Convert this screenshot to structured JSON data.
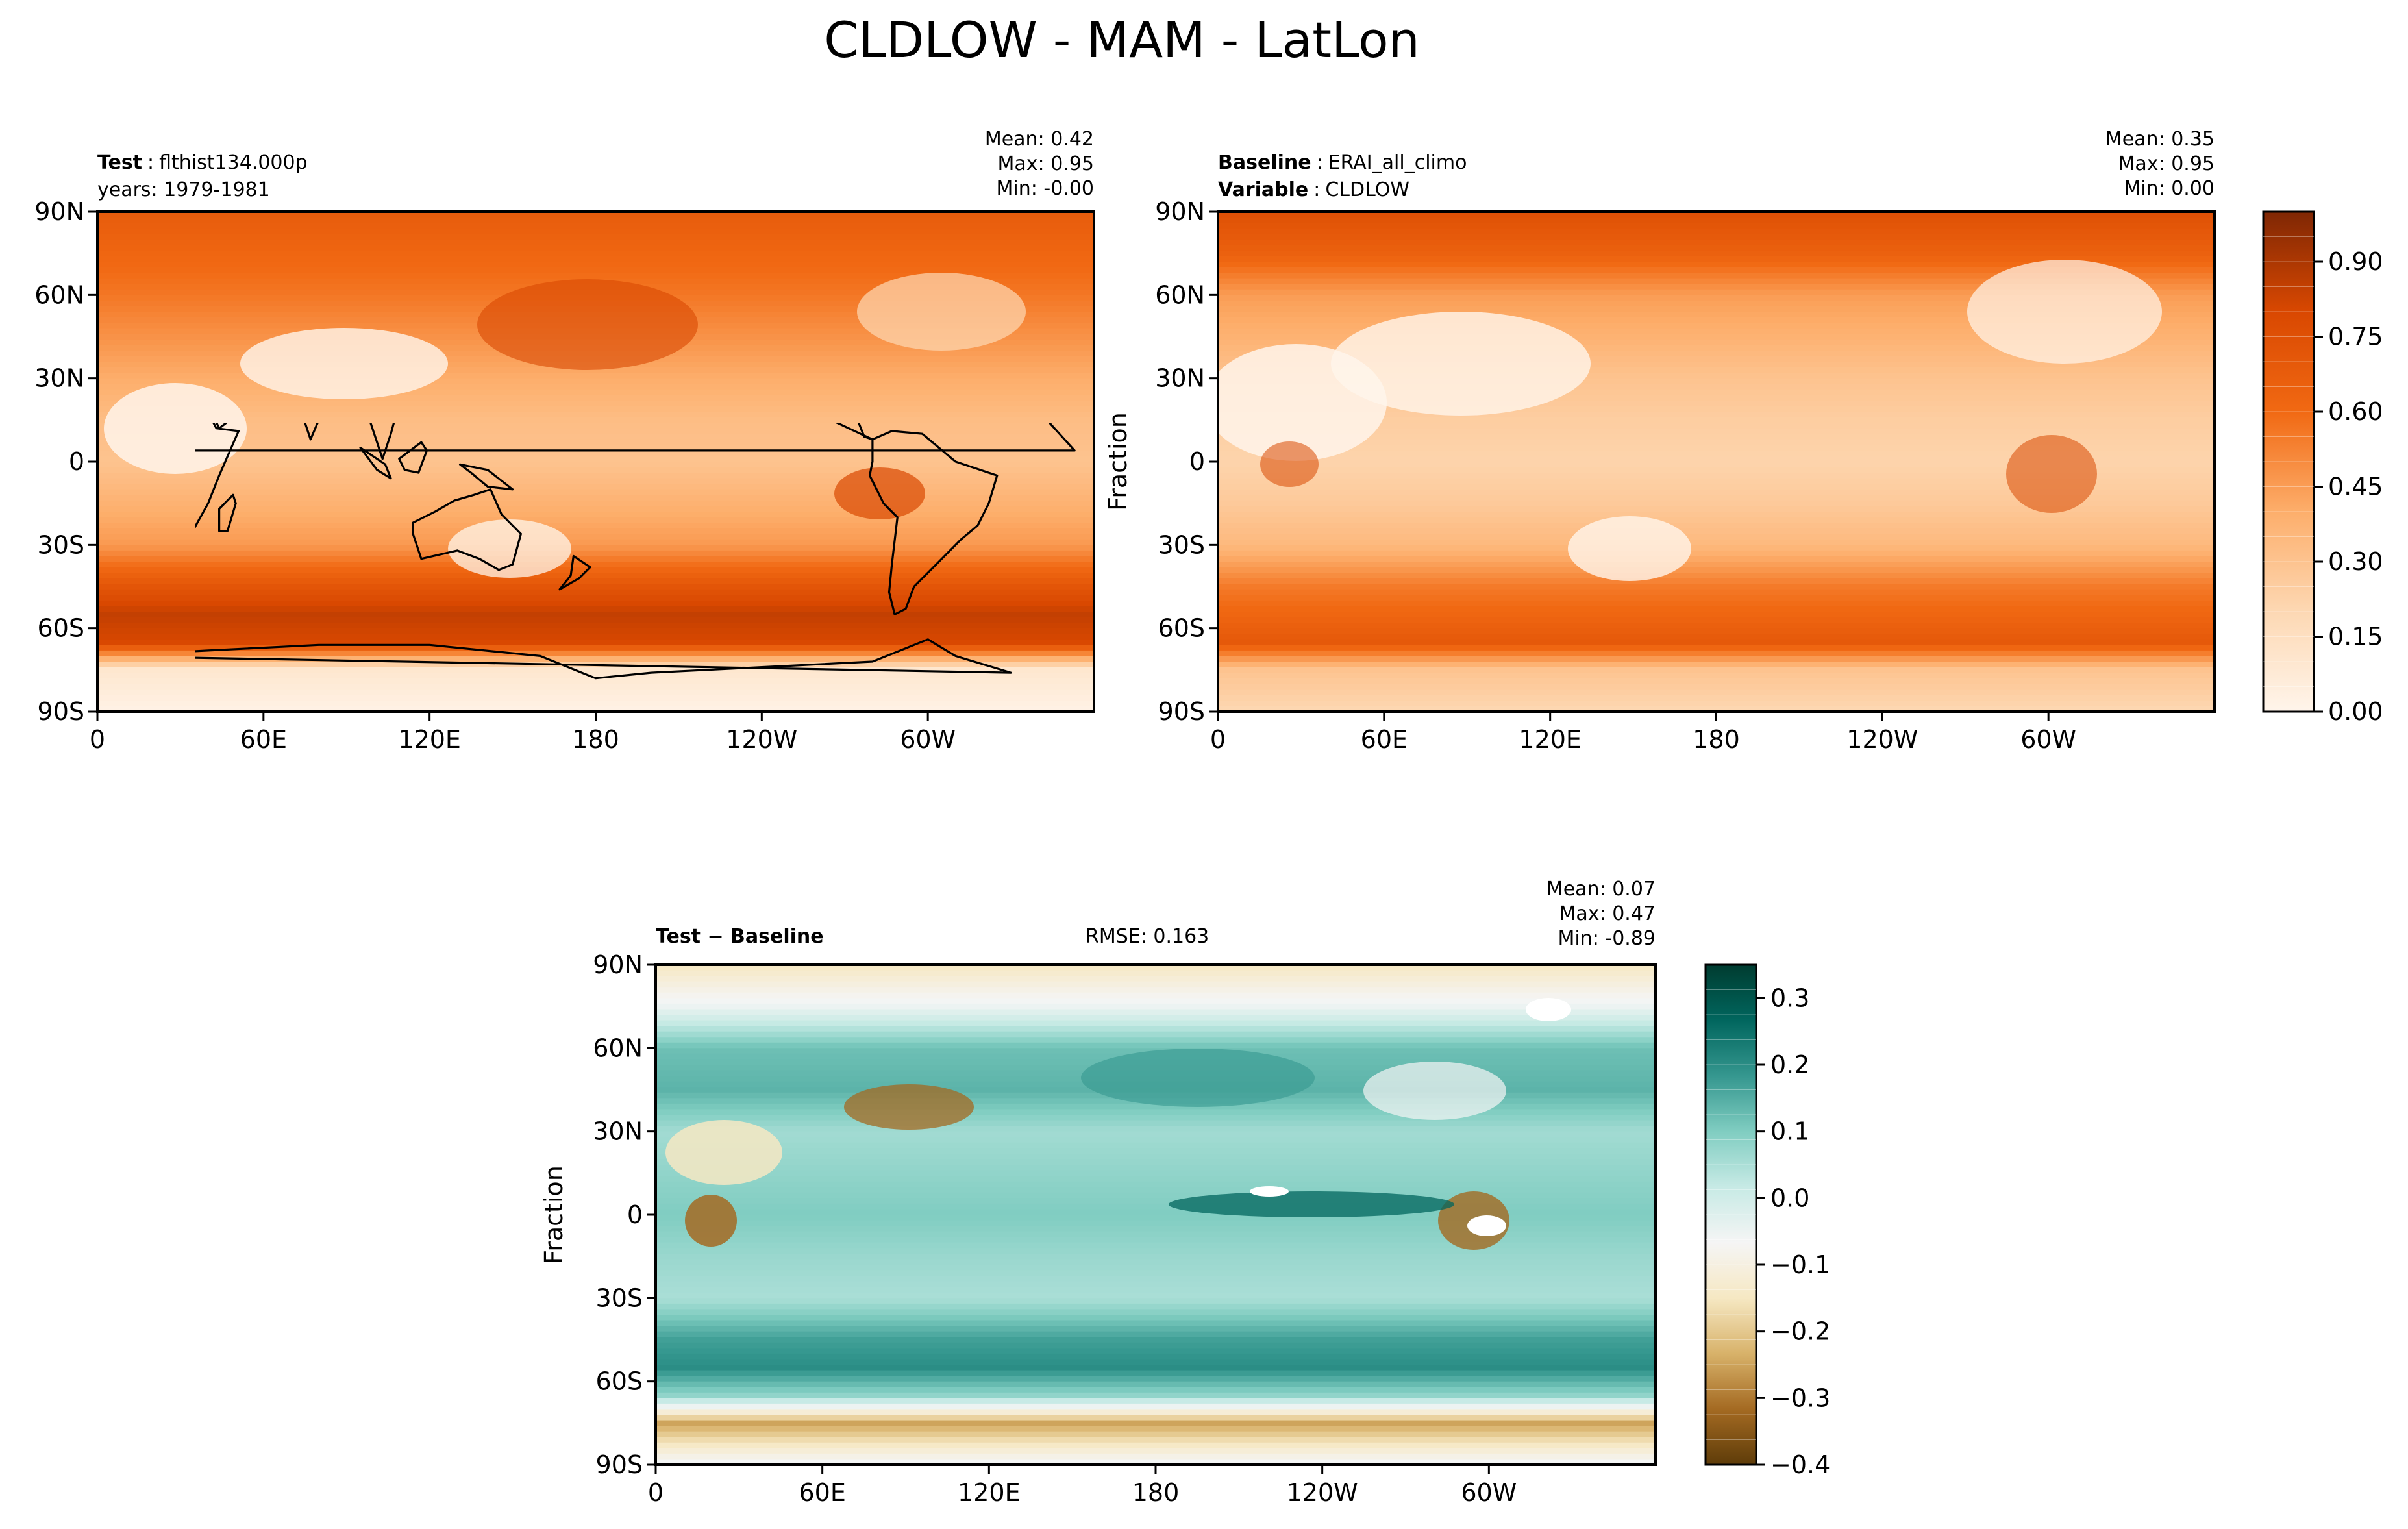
{
  "figure_title": "CLDLOW - MAM - LatLon",
  "colors": {
    "cldlow_ramp": [
      "#fff5eb",
      "#fdd8b3",
      "#fdae6b",
      "#f16913",
      "#d94801",
      "#7f2704"
    ],
    "diff_ramp": [
      "#5e3c09",
      "#a46a22",
      "#d8b26a",
      "#f6e8c3",
      "#f5f5f5",
      "#c7eae5",
      "#80cdc1",
      "#35978f",
      "#01665e",
      "#003c30"
    ],
    "axis": "#000000",
    "coast": "#000000"
  },
  "chart_data": [
    {
      "type": "heatmap",
      "panel": "test",
      "header_label": "Test",
      "header_value": "flthist134.000p",
      "subheader": "years: 1979-1981",
      "stats": {
        "mean": "Mean:  0.42",
        "max": "Max:  0.95",
        "min": "Min: -0.00"
      },
      "ylabel": "",
      "xticks": [
        "0",
        "60E",
        "120E",
        "180",
        "120W",
        "60W"
      ],
      "yticks": [
        "90N",
        "60N",
        "30N",
        "0",
        "30S",
        "60S",
        "90S"
      ],
      "xlim": [
        0,
        360
      ],
      "ylim": [
        -90,
        90
      ],
      "value_range": [
        0,
        1
      ],
      "zonal_profile": [
        {
          "lat": 90,
          "v": 0.68
        },
        {
          "lat": 75,
          "v": 0.62
        },
        {
          "lat": 60,
          "v": 0.56
        },
        {
          "lat": 45,
          "v": 0.48
        },
        {
          "lat": 30,
          "v": 0.4
        },
        {
          "lat": 15,
          "v": 0.33
        },
        {
          "lat": 0,
          "v": 0.3
        },
        {
          "lat": -15,
          "v": 0.38
        },
        {
          "lat": -30,
          "v": 0.46
        },
        {
          "lat": -45,
          "v": 0.72
        },
        {
          "lat": -55,
          "v": 0.85
        },
        {
          "lat": -65,
          "v": 0.8
        },
        {
          "lat": -75,
          "v": 0.1
        },
        {
          "lat": -90,
          "v": 0.02
        }
      ]
    },
    {
      "type": "heatmap",
      "panel": "baseline",
      "header_label": "Baseline",
      "header_value": "ERAI_all_climo",
      "subheader_label": "Variable",
      "subheader_value": "CLDLOW",
      "stats": {
        "mean": "Mean:  0.35",
        "max": "Max:  0.95",
        "min": "Min:  0.00"
      },
      "ylabel": "Fraction",
      "xticks": [
        "0",
        "60E",
        "120E",
        "180",
        "120W",
        "60W"
      ],
      "yticks": [
        "90N",
        "60N",
        "30N",
        "0",
        "30S",
        "60S",
        "90S"
      ],
      "xlim": [
        0,
        360
      ],
      "ylim": [
        -90,
        90
      ],
      "value_range": [
        0,
        1
      ],
      "colorbar_ticks": [
        "0.00",
        "0.15",
        "0.30",
        "0.45",
        "0.60",
        "0.75",
        "0.90"
      ],
      "colorbar_values": [
        0.0,
        0.15,
        0.3,
        0.45,
        0.6,
        0.75,
        0.9
      ],
      "colorbar_range": [
        0,
        1
      ],
      "zonal_profile": [
        {
          "lat": 90,
          "v": 0.75
        },
        {
          "lat": 75,
          "v": 0.65
        },
        {
          "lat": 60,
          "v": 0.45
        },
        {
          "lat": 45,
          "v": 0.38
        },
        {
          "lat": 30,
          "v": 0.3
        },
        {
          "lat": 15,
          "v": 0.25
        },
        {
          "lat": 0,
          "v": 0.22
        },
        {
          "lat": -15,
          "v": 0.27
        },
        {
          "lat": -30,
          "v": 0.35
        },
        {
          "lat": -45,
          "v": 0.55
        },
        {
          "lat": -55,
          "v": 0.62
        },
        {
          "lat": -65,
          "v": 0.7
        },
        {
          "lat": -75,
          "v": 0.3
        },
        {
          "lat": -90,
          "v": 0.2
        }
      ]
    },
    {
      "type": "heatmap",
      "panel": "difference",
      "header_label": "Test − Baseline",
      "rmse": "RMSE: 0.163",
      "stats": {
        "mean": "Mean:  0.07",
        "max": "Max:  0.47",
        "min": "Min: -0.89"
      },
      "ylabel": "Fraction",
      "xticks": [
        "0",
        "60E",
        "120E",
        "180",
        "120W",
        "60W"
      ],
      "yticks": [
        "90N",
        "60N",
        "30N",
        "0",
        "30S",
        "60S",
        "90S"
      ],
      "xlim": [
        0,
        360
      ],
      "ylim": [
        -90,
        90
      ],
      "value_range": [
        -0.4,
        0.35
      ],
      "colorbar_ticks": [
        "0.3",
        "0.2",
        "0.1",
        "0.0",
        "−0.1",
        "−0.2",
        "−0.3",
        "−0.4"
      ],
      "colorbar_values": [
        0.3,
        0.2,
        0.1,
        0.0,
        -0.1,
        -0.2,
        -0.3,
        -0.4
      ],
      "colorbar_range": [
        -0.4,
        0.35
      ],
      "zonal_profile": [
        {
          "lat": 90,
          "v": -0.15
        },
        {
          "lat": 75,
          "v": -0.05
        },
        {
          "lat": 60,
          "v": 0.12
        },
        {
          "lat": 45,
          "v": 0.14
        },
        {
          "lat": 30,
          "v": 0.06
        },
        {
          "lat": 15,
          "v": 0.08
        },
        {
          "lat": 0,
          "v": 0.1
        },
        {
          "lat": -15,
          "v": 0.07
        },
        {
          "lat": -30,
          "v": 0.05
        },
        {
          "lat": -45,
          "v": 0.17
        },
        {
          "lat": -55,
          "v": 0.2
        },
        {
          "lat": -65,
          "v": 0.08
        },
        {
          "lat": -75,
          "v": -0.25
        },
        {
          "lat": -90,
          "v": -0.05
        }
      ]
    }
  ]
}
